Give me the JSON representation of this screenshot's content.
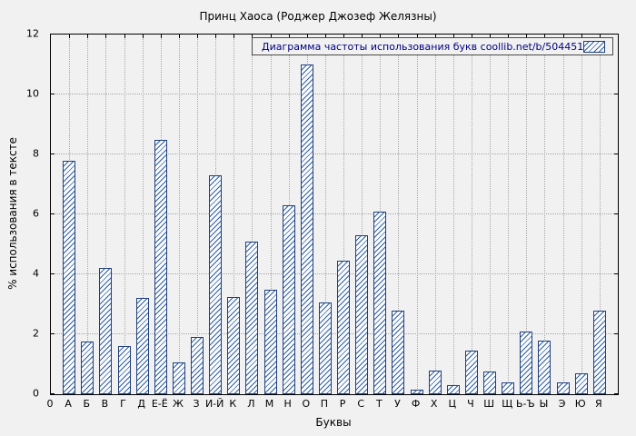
{
  "chart_data": {
    "type": "bar",
    "title": "Принц Хаоса (Роджер Джозеф Желязны)",
    "legend": "Диаграмма частоты использования букв  coollib.net/b/504451",
    "xlabel": "Буквы",
    "ylabel": "% использования в тексте",
    "x_origin_label": "0",
    "ylim": [
      0,
      12
    ],
    "y_ticks": [
      0,
      2,
      4,
      6,
      8,
      10,
      12
    ],
    "grid": true,
    "legend_position": "top-right",
    "categories": [
      "А",
      "Б",
      "В",
      "Г",
      "Д",
      "Е-Ё",
      "Ж",
      "З",
      "И-Й",
      "К",
      "Л",
      "М",
      "Н",
      "О",
      "П",
      "Р",
      "С",
      "Т",
      "У",
      "Ф",
      "Х",
      "Ц",
      "Ч",
      "Ш",
      "Щ",
      "Ь-Ъ",
      "Ы",
      "Э",
      "Ю",
      "Я"
    ],
    "values": [
      7.8,
      1.75,
      4.2,
      1.6,
      3.2,
      8.5,
      1.05,
      1.9,
      7.3,
      3.25,
      5.1,
      3.5,
      6.3,
      11.0,
      3.05,
      4.45,
      5.3,
      6.1,
      2.8,
      0.15,
      0.8,
      0.3,
      1.45,
      0.75,
      0.4,
      2.1,
      1.8,
      0.4,
      0.7,
      2.8
    ],
    "colors": {
      "bar_border": "#1f3f7a",
      "hatch": "#2f5fa8",
      "grid": "#a8a8a8",
      "legend_text": "#000080",
      "background": "#f1f1f1"
    }
  }
}
